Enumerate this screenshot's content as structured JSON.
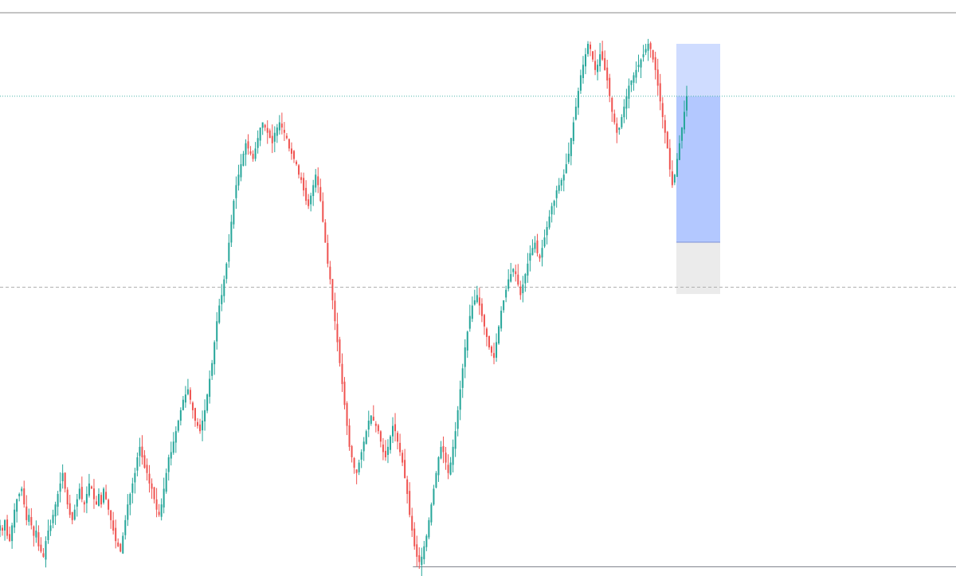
{
  "chart_data": {
    "type": "candlestick",
    "title": "",
    "xlabel": "",
    "ylabel": "",
    "ylim": [
      0,
      100
    ],
    "grid": false,
    "legend": "none",
    "colors": {
      "up": "#26a69a",
      "down": "#ef5350",
      "reference_line": "#787b86",
      "current_price_line": "#4db6ac",
      "profit_zone": "#cfdcff",
      "entry_zone": "#b3c8ff",
      "stop_zone": "#ebebeb"
    },
    "closes": [
      8,
      7,
      9,
      6,
      5,
      8,
      11,
      13,
      14,
      15,
      12,
      9,
      10,
      8,
      6,
      7,
      4,
      3,
      2,
      5,
      7,
      8,
      10,
      12,
      14,
      16,
      18,
      15,
      12,
      10,
      9,
      11,
      13,
      15,
      13,
      12,
      14,
      16,
      15,
      13,
      12,
      14,
      12,
      15,
      13,
      11,
      9,
      7,
      5,
      4,
      3,
      6,
      9,
      12,
      14,
      16,
      18,
      21,
      23,
      21,
      19,
      18,
      16,
      15,
      13,
      11,
      10,
      12,
      15,
      18,
      21,
      22,
      24,
      26,
      28,
      30,
      32,
      33,
      34,
      32,
      30,
      28,
      27,
      26,
      28,
      30,
      33,
      36,
      39,
      43,
      47,
      50,
      52,
      55,
      58,
      62,
      66,
      70,
      73,
      75,
      77,
      79,
      81,
      80,
      79,
      78,
      80,
      82,
      84,
      85,
      84,
      83,
      82,
      81,
      83,
      84,
      85,
      84,
      83,
      82,
      80,
      79,
      78,
      77,
      75,
      74,
      72,
      70,
      69,
      71,
      73,
      75,
      73,
      70,
      66,
      62,
      58,
      55,
      51,
      47,
      43,
      39,
      35,
      31,
      27,
      23,
      21,
      19,
      18,
      20,
      22,
      24,
      26,
      28,
      29,
      28,
      27,
      26,
      24,
      22,
      21,
      23,
      25,
      27,
      26,
      24,
      22,
      20,
      17,
      14,
      10,
      7,
      4,
      2,
      1,
      2,
      4,
      6,
      9,
      12,
      15,
      18,
      21,
      23,
      22,
      20,
      18,
      20,
      23,
      26,
      30,
      34,
      38,
      42,
      45,
      48,
      50,
      51,
      52,
      50,
      48,
      46,
      44,
      42,
      41,
      40,
      43,
      46,
      49,
      51,
      53,
      55,
      56,
      57,
      56,
      54,
      52,
      54,
      56,
      58,
      60,
      61,
      62,
      60,
      59,
      61,
      63,
      65,
      67,
      69,
      70,
      72,
      73,
      74,
      75,
      77,
      79,
      82,
      85,
      88,
      91,
      94,
      96,
      98,
      100,
      99,
      97,
      95,
      96,
      98,
      97,
      95,
      93,
      90,
      87,
      85,
      83,
      84,
      86,
      88,
      90,
      92,
      93,
      94,
      95,
      96,
      97,
      98,
      99,
      100,
      99,
      97,
      95,
      92,
      89,
      86,
      83,
      80,
      76,
      73,
      75,
      78,
      81,
      84,
      87,
      90
    ]
  }
}
